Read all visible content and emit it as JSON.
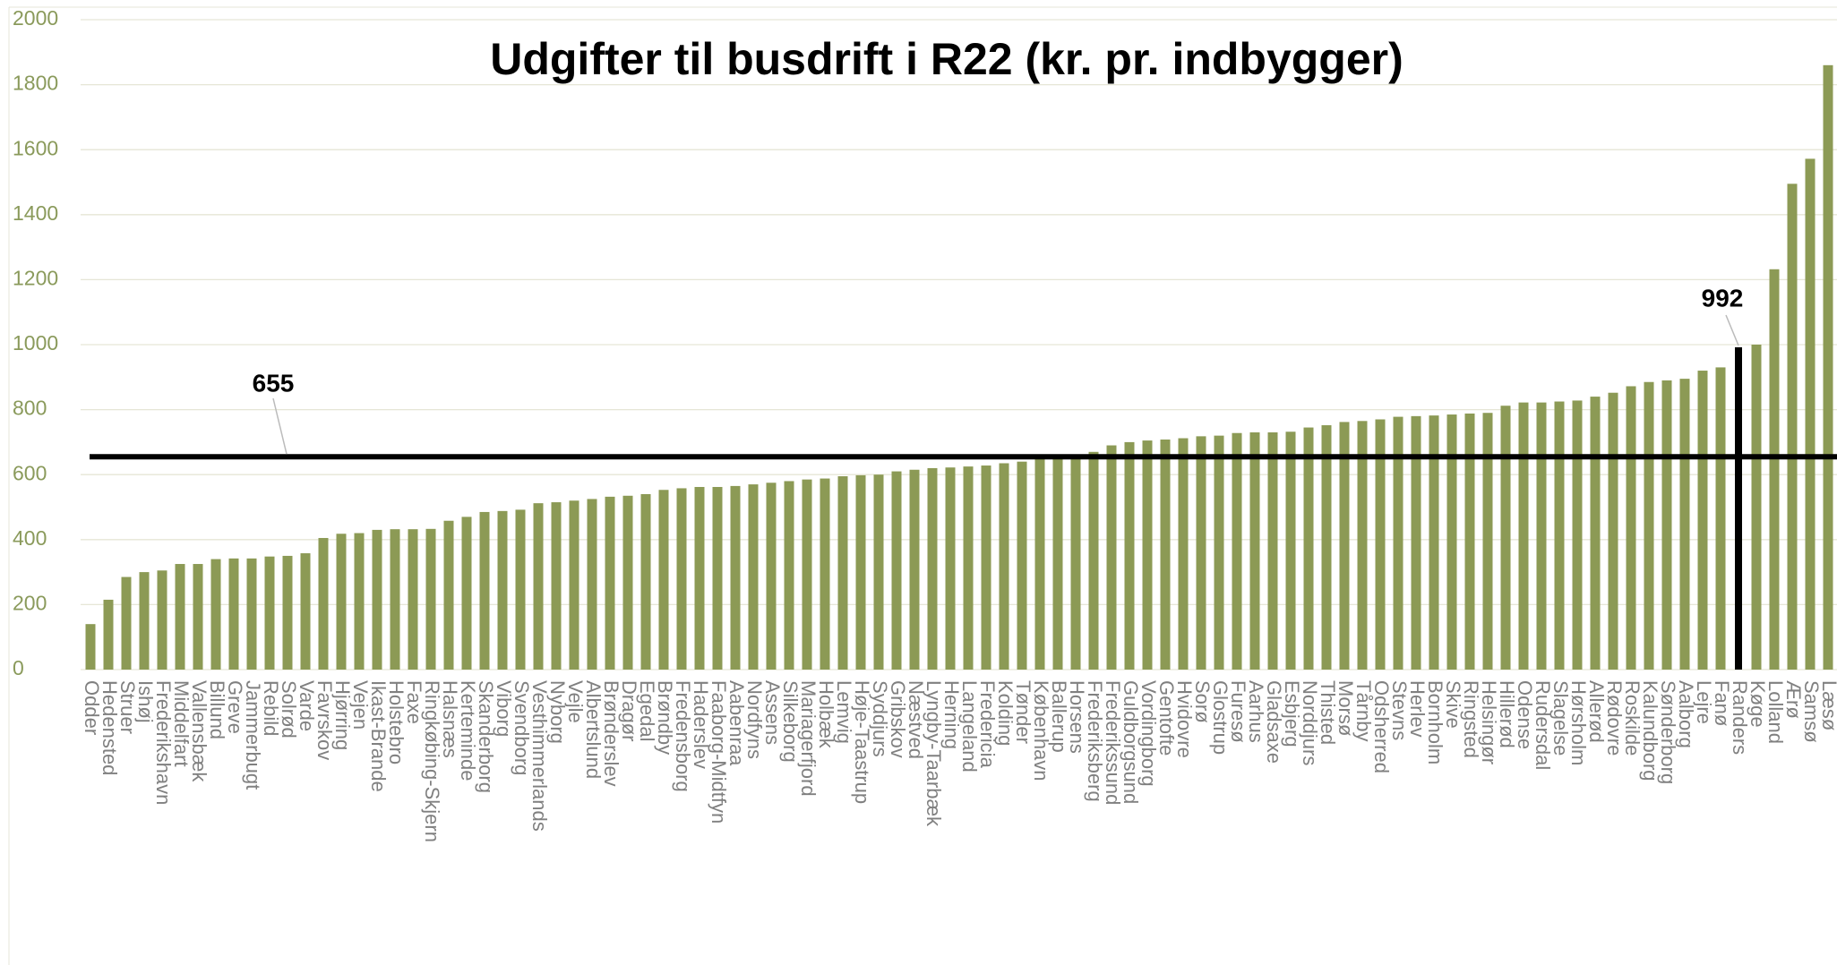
{
  "chart_data": {
    "type": "bar",
    "title": "Udgifter til busdrift i R22 (kr. pr. indbygger)",
    "categories": [
      "Odder",
      "Hedensted",
      "Struer",
      "Ishøj",
      "Frederikshavn",
      "Middelfart",
      "Vallensbæk",
      "Billund",
      "Greve",
      "Jammerbugt",
      "Rebild",
      "Solrød",
      "Varde",
      "Favrskov",
      "Hjørring",
      "Vejen",
      "Ikast-Brande",
      "Holstebro",
      "Faxe",
      "Ringkøbing-Skjern",
      "Halsnæs",
      "Kerteminde",
      "Skanderborg",
      "Viborg",
      "Svendborg",
      "Vesthimmerlands",
      "Nyborg",
      "Vejle",
      "Albertslund",
      "Brønderslev",
      "Dragør",
      "Egedal",
      "Brøndby",
      "Fredensborg",
      "Haderslev",
      "Faaborg-Midtfyn",
      "Aabenraa",
      "Nordfyns",
      "Assens",
      "Silkeborg",
      "Mariagerfjord",
      "Holbæk",
      "Lemvig",
      "Høje-Taastrup",
      "Syddjurs",
      "Gribskov",
      "Næstved",
      "Lyngby-Taarbæk",
      "Herning",
      "Langeland",
      "Fredericia",
      "Kolding",
      "Tønder",
      "København",
      "Ballerup",
      "Horsens",
      "Frederiksberg",
      "Frederikssund",
      "Guldborgsund",
      "Vordingborg",
      "Gentofte",
      "Hvidovre",
      "Sorø",
      "Glostrup",
      "Furesø",
      "Aarhus",
      "Gladsaxe",
      "Esbjerg",
      "Norddjurs",
      "Thisted",
      "Morsø",
      "Tårnby",
      "Odsherred",
      "Stevns",
      "Herlev",
      "Bornholm",
      "Skive",
      "Ringsted",
      "Helsingør",
      "Hillerød",
      "Odense",
      "Rudersdal",
      "Slagelse",
      "Hørsholm",
      "Allerød",
      "Rødovre",
      "Roskilde",
      "Kalundborg",
      "Sønderborg",
      "Aalborg",
      "Lejre",
      "Fanø",
      "Randers",
      "Køge",
      "Lolland",
      "Ærø",
      "Samsø",
      "Læsø"
    ],
    "values": [
      140,
      215,
      285,
      300,
      305,
      325,
      325,
      340,
      342,
      342,
      348,
      350,
      358,
      405,
      418,
      420,
      430,
      432,
      432,
      433,
      458,
      470,
      485,
      488,
      492,
      512,
      515,
      520,
      525,
      532,
      535,
      540,
      553,
      558,
      562,
      562,
      565,
      570,
      575,
      580,
      585,
      588,
      595,
      598,
      600,
      610,
      615,
      620,
      622,
      625,
      628,
      635,
      640,
      650,
      652,
      660,
      670,
      690,
      700,
      705,
      708,
      712,
      718,
      720,
      728,
      730,
      730,
      732,
      745,
      752,
      762,
      765,
      770,
      778,
      780,
      782,
      785,
      788,
      790,
      812,
      822,
      822,
      825,
      828,
      840,
      852,
      872,
      885,
      890,
      895,
      920,
      930,
      992,
      1000,
      1232,
      1495,
      1572,
      1860
    ],
    "color": "#8c9a55",
    "highlight": {
      "category": "Randers",
      "color": "#000000"
    },
    "reference_line": {
      "value": 655,
      "color": "#000000"
    },
    "ylim": [
      0,
      2000
    ],
    "yticks": [
      0,
      200,
      400,
      600,
      800,
      1000,
      1200,
      1400,
      1600,
      1800,
      2000
    ],
    "grid": true
  }
}
